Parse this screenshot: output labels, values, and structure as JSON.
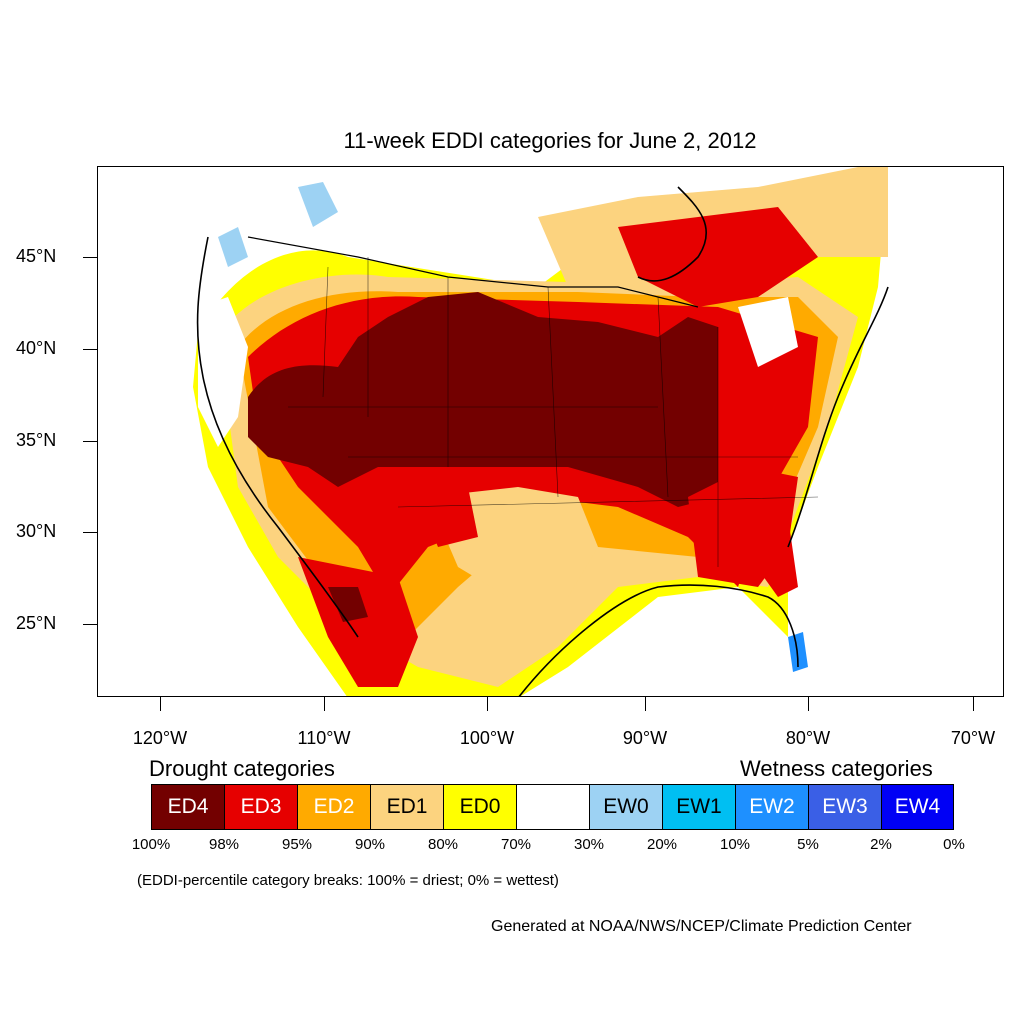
{
  "title": "11-week EDDI categories for June 2, 2012",
  "lat_labels": [
    "45°N",
    "40°N",
    "35°N",
    "30°N",
    "25°N"
  ],
  "lon_labels": [
    "120°W",
    "110°W",
    "100°W",
    "90°W",
    "80°W",
    "70°W"
  ],
  "legend": {
    "drought_heading": "Drought categories",
    "wetness_heading": "Wetness categories",
    "categories": [
      {
        "label": "ED4",
        "color": "#730000",
        "text_color": "#ffffff"
      },
      {
        "label": "ED3",
        "color": "#e60000",
        "text_color": "#ffffff"
      },
      {
        "label": "ED2",
        "color": "#ffaa00",
        "text_color": "#ffffff"
      },
      {
        "label": "ED1",
        "color": "#fcd37f",
        "text_color": "#000000"
      },
      {
        "label": "ED0",
        "color": "#ffff00",
        "text_color": "#000000"
      },
      {
        "label": "",
        "color": "#ffffff",
        "text_color": "#000000"
      },
      {
        "label": "EW0",
        "color": "#9dd2f3",
        "text_color": "#000000"
      },
      {
        "label": "EW1",
        "color": "#00bff2",
        "text_color": "#000000"
      },
      {
        "label": "EW2",
        "color": "#1e90ff",
        "text_color": "#ffffff"
      },
      {
        "label": "EW3",
        "color": "#3a5fe6",
        "text_color": "#ffffff"
      },
      {
        "label": "EW4",
        "color": "#0000f5",
        "text_color": "#ffffff"
      }
    ],
    "percentiles": [
      "100%",
      "98%",
      "95%",
      "90%",
      "80%",
      "70%",
      "30%",
      "20%",
      "10%",
      "5%",
      "2%",
      "0%"
    ]
  },
  "note": "(EDDI-percentile category breaks: 100% = driest; 0% = wettest)",
  "credit": "Generated at NOAA/NWS/NCEP/Climate Prediction Center"
}
